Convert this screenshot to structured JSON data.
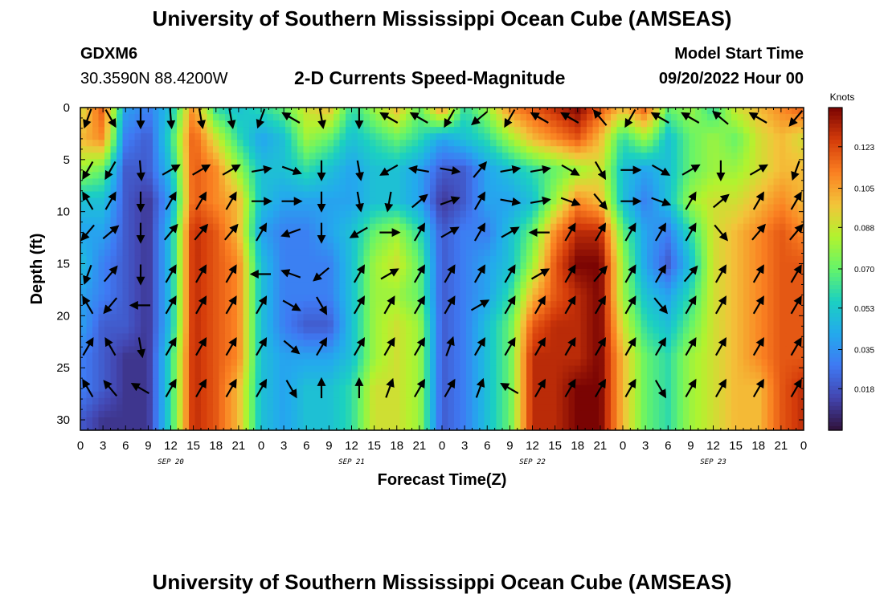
{
  "header": {
    "title": "University of Southern Mississippi Ocean Cube (AMSEAS)",
    "station_id": "GDXM6",
    "station_coords": "30.3590N  88.4200W",
    "subtitle": "2-D Currents Speed-Magnitude",
    "model_start_label": "Model Start Time",
    "model_start_value": "09/20/2022 Hour 00"
  },
  "footer": {
    "title": "University of Southern Mississippi Ocean Cube (AMSEAS)"
  },
  "chart_data": {
    "type": "heatmap",
    "xlabel": "Forecast Time(Z)",
    "ylabel": "Depth (ft)",
    "x_tick_labels": [
      "0",
      "3",
      "6",
      "9",
      "12",
      "15",
      "18",
      "21",
      "0",
      "3",
      "6",
      "9",
      "12",
      "15",
      "18",
      "21",
      "0",
      "3",
      "6",
      "9",
      "12",
      "15",
      "18",
      "21",
      "0",
      "3",
      "6",
      "9",
      "12",
      "15",
      "18",
      "21",
      "0"
    ],
    "day_labels": [
      {
        "label": "SEP 20",
        "hour": 12
      },
      {
        "label": "SEP 21",
        "hour": 36
      },
      {
        "label": "SEP 22",
        "hour": 60
      },
      {
        "label": "SEP 23",
        "hour": 84
      }
    ],
    "xlim_hours": [
      0,
      96
    ],
    "ylim_depth_ft": [
      0,
      31
    ],
    "y_tick_labels": [
      "0",
      "5",
      "10",
      "15",
      "20",
      "25",
      "30"
    ],
    "y_ticks": [
      0,
      5,
      10,
      15,
      20,
      25,
      30
    ],
    "colorbar": {
      "unit": "Knots",
      "tick_labels": [
        "0.018",
        "0.035",
        "0.053",
        "0.070",
        "0.088",
        "0.105",
        "0.123"
      ],
      "ticks": [
        0.018,
        0.035,
        0.053,
        0.07,
        0.088,
        0.105,
        0.123
      ],
      "range": [
        0.0,
        0.14
      ],
      "colormap": "turbo"
    },
    "hours": [
      0,
      3,
      6,
      9,
      12,
      15,
      18,
      21,
      24,
      27,
      30,
      33,
      36,
      39,
      42,
      45,
      48,
      51,
      54,
      57,
      60,
      63,
      66,
      69,
      72,
      75,
      78,
      81,
      84,
      87,
      90,
      93,
      96
    ],
    "depths_ft": [
      0,
      3,
      6,
      9,
      12,
      15,
      18,
      21,
      24,
      27,
      30
    ],
    "speed_knots": [
      [
        0.09,
        0.12,
        0.04,
        0.03,
        0.05,
        0.11,
        0.06,
        0.05,
        0.06,
        0.07,
        0.09,
        0.1,
        0.06,
        0.08,
        0.1,
        0.07,
        0.11,
        0.06,
        0.08,
        0.11,
        0.12,
        0.13,
        0.14,
        0.12,
        0.1,
        0.12,
        0.07,
        0.08,
        0.06,
        0.09,
        0.1,
        0.11,
        0.12
      ],
      [
        0.1,
        0.11,
        0.03,
        0.02,
        0.06,
        0.12,
        0.09,
        0.06,
        0.04,
        0.05,
        0.08,
        0.07,
        0.05,
        0.06,
        0.07,
        0.06,
        0.04,
        0.05,
        0.06,
        0.08,
        0.1,
        0.11,
        0.12,
        0.1,
        0.06,
        0.08,
        0.05,
        0.07,
        0.08,
        0.07,
        0.09,
        0.1,
        0.09
      ],
      [
        0.08,
        0.07,
        0.02,
        0.02,
        0.05,
        0.12,
        0.11,
        0.08,
        0.05,
        0.05,
        0.06,
        0.05,
        0.04,
        0.05,
        0.05,
        0.04,
        0.02,
        0.02,
        0.04,
        0.05,
        0.06,
        0.07,
        0.08,
        0.09,
        0.05,
        0.04,
        0.05,
        0.07,
        0.08,
        0.08,
        0.09,
        0.1,
        0.1
      ],
      [
        0.05,
        0.05,
        0.02,
        0.01,
        0.04,
        0.12,
        0.11,
        0.1,
        0.05,
        0.04,
        0.04,
        0.04,
        0.04,
        0.05,
        0.05,
        0.04,
        0.01,
        0.02,
        0.04,
        0.04,
        0.05,
        0.08,
        0.11,
        0.1,
        0.05,
        0.03,
        0.05,
        0.08,
        0.09,
        0.09,
        0.1,
        0.11,
        0.1
      ],
      [
        0.04,
        0.04,
        0.02,
        0.01,
        0.05,
        0.13,
        0.12,
        0.1,
        0.04,
        0.03,
        0.03,
        0.04,
        0.05,
        0.07,
        0.08,
        0.06,
        0.02,
        0.03,
        0.03,
        0.05,
        0.07,
        0.11,
        0.13,
        0.13,
        0.07,
        0.04,
        0.03,
        0.06,
        0.09,
        0.1,
        0.11,
        0.12,
        0.11
      ],
      [
        0.05,
        0.03,
        0.02,
        0.01,
        0.05,
        0.13,
        0.12,
        0.11,
        0.05,
        0.03,
        0.03,
        0.03,
        0.05,
        0.08,
        0.09,
        0.07,
        0.02,
        0.03,
        0.04,
        0.05,
        0.08,
        0.12,
        0.14,
        0.14,
        0.08,
        0.04,
        0.02,
        0.05,
        0.09,
        0.1,
        0.11,
        0.12,
        0.12
      ],
      [
        0.04,
        0.03,
        0.02,
        0.01,
        0.05,
        0.13,
        0.12,
        0.11,
        0.05,
        0.03,
        0.03,
        0.03,
        0.05,
        0.08,
        0.08,
        0.07,
        0.02,
        0.03,
        0.04,
        0.06,
        0.1,
        0.12,
        0.13,
        0.14,
        0.08,
        0.05,
        0.04,
        0.06,
        0.09,
        0.1,
        0.11,
        0.12,
        0.12
      ],
      [
        0.04,
        0.02,
        0.02,
        0.01,
        0.05,
        0.13,
        0.12,
        0.11,
        0.05,
        0.03,
        0.02,
        0.02,
        0.05,
        0.08,
        0.09,
        0.08,
        0.02,
        0.03,
        0.05,
        0.07,
        0.12,
        0.13,
        0.13,
        0.14,
        0.09,
        0.06,
        0.05,
        0.07,
        0.09,
        0.1,
        0.11,
        0.12,
        0.12
      ],
      [
        0.03,
        0.02,
        0.01,
        0.01,
        0.06,
        0.13,
        0.12,
        0.11,
        0.05,
        0.04,
        0.04,
        0.04,
        0.05,
        0.08,
        0.09,
        0.08,
        0.02,
        0.03,
        0.05,
        0.07,
        0.13,
        0.13,
        0.13,
        0.14,
        0.1,
        0.07,
        0.06,
        0.08,
        0.09,
        0.1,
        0.11,
        0.12,
        0.12
      ],
      [
        0.03,
        0.02,
        0.01,
        0.01,
        0.06,
        0.13,
        0.12,
        0.1,
        0.05,
        0.04,
        0.05,
        0.05,
        0.06,
        0.09,
        0.09,
        0.08,
        0.02,
        0.03,
        0.05,
        0.07,
        0.13,
        0.13,
        0.14,
        0.14,
        0.1,
        0.07,
        0.06,
        0.08,
        0.09,
        0.1,
        0.1,
        0.12,
        0.13
      ],
      [
        0.02,
        0.01,
        0.01,
        0.01,
        0.06,
        0.13,
        0.12,
        0.1,
        0.05,
        0.04,
        0.05,
        0.05,
        0.06,
        0.09,
        0.09,
        0.08,
        0.02,
        0.03,
        0.05,
        0.07,
        0.13,
        0.13,
        0.14,
        0.14,
        0.1,
        0.07,
        0.06,
        0.08,
        0.09,
        0.1,
        0.1,
        0.12,
        0.13
      ]
    ],
    "vectors": {
      "hours": [
        1,
        4,
        8,
        12,
        16,
        20,
        24,
        28,
        32,
        37,
        41,
        45,
        49,
        53,
        57,
        61,
        65,
        69,
        73,
        77,
        81,
        85,
        90,
        95
      ],
      "depths_ft": [
        1,
        6,
        9,
        12,
        16,
        19,
        23,
        27
      ],
      "direction_deg": [
        [
          200,
          150,
          180,
          175,
          170,
          170,
          200,
          300,
          170,
          180,
          300,
          300,
          210,
          230,
          210,
          300,
          300,
          320,
          210,
          300,
          300,
          310,
          300,
          220
        ],
        [
          210,
          210,
          175,
          60,
          60,
          60,
          80,
          110,
          180,
          170,
          240,
          280,
          100,
          40,
          80,
          80,
          120,
          150,
          90,
          120,
          60,
          180,
          60,
          200
        ],
        [
          330,
          30,
          180,
          30,
          30,
          30,
          90,
          90,
          180,
          170,
          190,
          50,
          70,
          30,
          100,
          80,
          110,
          140,
          90,
          110,
          30,
          50,
          30,
          30
        ],
        [
          220,
          50,
          180,
          40,
          40,
          40,
          30,
          250,
          180,
          240,
          90,
          30,
          60,
          30,
          60,
          270,
          30,
          30,
          30,
          30,
          30,
          140,
          40,
          40
        ],
        [
          200,
          40,
          180,
          30,
          30,
          30,
          270,
          290,
          230,
          30,
          60,
          30,
          30,
          30,
          30,
          60,
          30,
          40,
          30,
          30,
          40,
          30,
          30,
          30
        ],
        [
          330,
          220,
          270,
          30,
          30,
          30,
          30,
          120,
          150,
          30,
          30,
          30,
          30,
          60,
          30,
          30,
          30,
          30,
          30,
          140,
          30,
          30,
          30,
          30
        ],
        [
          30,
          330,
          170,
          30,
          30,
          30,
          30,
          130,
          30,
          30,
          30,
          30,
          20,
          30,
          30,
          30,
          30,
          30,
          30,
          30,
          30,
          30,
          30,
          30
        ],
        [
          330,
          320,
          300,
          30,
          30,
          30,
          30,
          150,
          0,
          0,
          20,
          30,
          30,
          20,
          300,
          30,
          30,
          30,
          30,
          150,
          30,
          30,
          30,
          30
        ]
      ]
    }
  }
}
